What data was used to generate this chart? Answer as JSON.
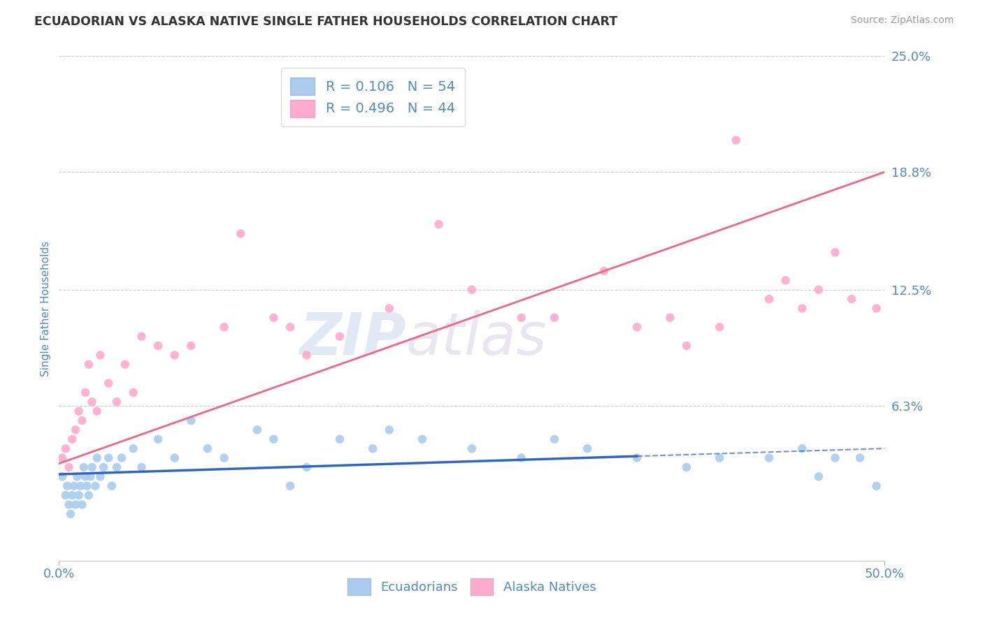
{
  "title": "ECUADORIAN VS ALASKA NATIVE SINGLE FATHER HOUSEHOLDS CORRELATION CHART",
  "source": "Source: ZipAtlas.com",
  "ylabel": "Single Father Households",
  "xlim": [
    0.0,
    50.0
  ],
  "ylim": [
    -2.0,
    25.0
  ],
  "ytick_labels": [
    "6.3%",
    "12.5%",
    "18.8%",
    "25.0%"
  ],
  "ytick_values": [
    6.3,
    12.5,
    18.8,
    25.0
  ],
  "blue_R": 0.106,
  "blue_N": 54,
  "pink_R": 0.496,
  "pink_N": 44,
  "blue_color": "#aaccee",
  "pink_color": "#ffaacc",
  "blue_line_color": "#3366bb",
  "pink_line_color": "#ee6688",
  "title_color": "#333333",
  "axis_label_color": "#5588bb",
  "grid_color": "#cccccc",
  "watermark_color": "#d0dff0",
  "blue_scatter_x": [
    0.2,
    0.4,
    0.5,
    0.6,
    0.7,
    0.8,
    0.9,
    1.0,
    1.1,
    1.2,
    1.3,
    1.4,
    1.5,
    1.6,
    1.7,
    1.8,
    1.9,
    2.0,
    2.2,
    2.3,
    2.5,
    2.7,
    3.0,
    3.2,
    3.5,
    3.8,
    4.5,
    5.0,
    6.0,
    7.0,
    8.0,
    9.0,
    10.0,
    12.0,
    13.0,
    14.0,
    15.0,
    17.0,
    19.0,
    20.0,
    22.0,
    25.0,
    28.0,
    30.0,
    32.0,
    35.0,
    38.0,
    40.0,
    43.0,
    45.0,
    46.0,
    47.0,
    48.5,
    49.5
  ],
  "blue_scatter_y": [
    2.5,
    1.5,
    2.0,
    1.0,
    0.5,
    1.5,
    2.0,
    1.0,
    2.5,
    1.5,
    2.0,
    1.0,
    3.0,
    2.5,
    2.0,
    1.5,
    2.5,
    3.0,
    2.0,
    3.5,
    2.5,
    3.0,
    3.5,
    2.0,
    3.0,
    3.5,
    4.0,
    3.0,
    4.5,
    3.5,
    5.5,
    4.0,
    3.5,
    5.0,
    4.5,
    2.0,
    3.0,
    4.5,
    4.0,
    5.0,
    4.5,
    4.0,
    3.5,
    4.5,
    4.0,
    3.5,
    3.0,
    3.5,
    3.5,
    4.0,
    2.5,
    3.5,
    3.5,
    2.0
  ],
  "pink_scatter_x": [
    0.2,
    0.4,
    0.6,
    0.8,
    1.0,
    1.2,
    1.4,
    1.6,
    1.8,
    2.0,
    2.3,
    2.5,
    3.0,
    3.5,
    4.0,
    4.5,
    5.0,
    6.0,
    7.0,
    8.0,
    10.0,
    11.0,
    13.0,
    14.0,
    15.0,
    17.0,
    20.0,
    23.0,
    25.0,
    28.0,
    30.0,
    33.0,
    35.0,
    37.0,
    38.0,
    40.0,
    41.0,
    43.0,
    44.0,
    45.0,
    46.0,
    47.0,
    48.0,
    49.5
  ],
  "pink_scatter_y": [
    3.5,
    4.0,
    3.0,
    4.5,
    5.0,
    6.0,
    5.5,
    7.0,
    8.5,
    6.5,
    6.0,
    9.0,
    7.5,
    6.5,
    8.5,
    7.0,
    10.0,
    9.5,
    9.0,
    9.5,
    10.5,
    15.5,
    11.0,
    10.5,
    9.0,
    10.0,
    11.5,
    16.0,
    12.5,
    11.0,
    11.0,
    13.5,
    10.5,
    11.0,
    9.5,
    10.5,
    20.5,
    12.0,
    13.0,
    11.5,
    12.5,
    14.5,
    12.0,
    11.5
  ],
  "blue_solid_end_x": 35.0,
  "legend_label_blue": "Ecuadorians",
  "legend_label_pink": "Alaska Natives",
  "pink_line_start_y": 3.2,
  "pink_line_end_y": 18.8
}
